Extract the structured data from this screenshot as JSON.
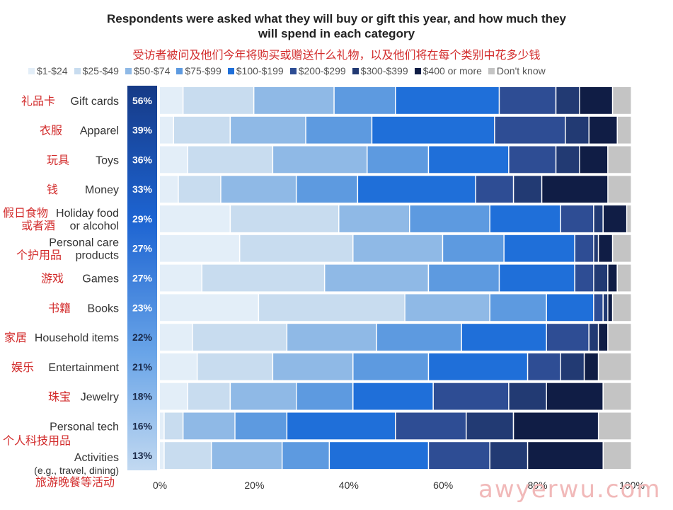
{
  "title": {
    "line1": "Respondents were asked what they will buy or gift this year, and how much they",
    "line2": "will spend in each category"
  },
  "subtitle_cn": "受访者被问及他们今年将购买或赠送什么礼物，以及他们将在每个类别中花多少钱",
  "watermark": "awyerwu.com",
  "chart_data": {
    "type": "bar",
    "orientation": "horizontal",
    "stacked": true,
    "title": "Respondents were asked what they will buy or gift this year, and how much they will spend in each category",
    "xlim": [
      0,
      100
    ],
    "x_ticks": [
      "0%",
      "20%",
      "40%",
      "60%",
      "80%",
      "100%"
    ],
    "legend_position": "top",
    "grid": false,
    "segments": [
      {
        "name": "$1-$24",
        "color": "#e3eef8"
      },
      {
        "name": "$25-$49",
        "color": "#c8dcef"
      },
      {
        "name": "$50-$74",
        "color": "#8fb9e6"
      },
      {
        "name": "$75-$99",
        "color": "#5d9ae0"
      },
      {
        "name": "$100-$199",
        "color": "#1f6fd9"
      },
      {
        "name": "$200-$299",
        "color": "#2e4d94"
      },
      {
        "name": "$300-$399",
        "color": "#223a73"
      },
      {
        "name": "$400 or more",
        "color": "#101d45"
      },
      {
        "name": "Don't know",
        "color": "#c4c4c4"
      }
    ],
    "categories": [
      {
        "label": "Gift cards",
        "label_cn": "礼品卡",
        "pct": "56%",
        "values": [
          5,
          15,
          17,
          13,
          22,
          12,
          5,
          7,
          4
        ]
      },
      {
        "label": "Apparel",
        "label_cn": "衣服",
        "pct": "39%",
        "values": [
          3,
          12,
          16,
          14,
          26,
          15,
          5,
          6,
          3
        ]
      },
      {
        "label": "Toys",
        "label_cn": "玩具",
        "pct": "36%",
        "values": [
          6,
          18,
          20,
          13,
          17,
          10,
          5,
          6,
          5
        ]
      },
      {
        "label": "Money",
        "label_cn": "钱",
        "pct": "33%",
        "values": [
          4,
          9,
          16,
          13,
          25,
          8,
          6,
          14,
          5
        ]
      },
      {
        "label": "Holiday food or alcohol",
        "label_cn": "假日食物或者酒",
        "pct": "29%",
        "values": [
          15,
          23,
          15,
          17,
          15,
          7,
          2,
          5,
          1
        ]
      },
      {
        "label": "Personal care products",
        "label_cn": "个护用品",
        "pct": "27%",
        "values": [
          17,
          24,
          19,
          13,
          15,
          4,
          1,
          3,
          4
        ]
      },
      {
        "label": "Games",
        "label_cn": "游戏",
        "pct": "27%",
        "values": [
          9,
          26,
          22,
          15,
          16,
          4,
          3,
          2,
          3
        ]
      },
      {
        "label": "Books",
        "label_cn": "书籍",
        "pct": "23%",
        "values": [
          21,
          31,
          18,
          12,
          10,
          2,
          1,
          1,
          4
        ]
      },
      {
        "label": "Household items",
        "label_cn": "家居",
        "pct": "22%",
        "values": [
          7,
          20,
          19,
          18,
          18,
          9,
          2,
          2,
          5
        ]
      },
      {
        "label": "Entertainment",
        "label_cn": "娱乐",
        "pct": "21%",
        "values": [
          8,
          16,
          17,
          16,
          21,
          7,
          5,
          3,
          7
        ]
      },
      {
        "label": "Jewelry",
        "label_cn": "珠宝",
        "pct": "18%",
        "values": [
          6,
          9,
          14,
          12,
          17,
          16,
          8,
          12,
          6
        ]
      },
      {
        "label": "Personal tech",
        "label_cn": "个人科技用品",
        "pct": "16%",
        "values": [
          1,
          4,
          11,
          11,
          23,
          15,
          10,
          18,
          7
        ]
      },
      {
        "label": "Activities (e.g., travel, dining)",
        "label_cn": "旅游晚餐等活动",
        "pct": "13%",
        "values": [
          1,
          10,
          15,
          10,
          21,
          13,
          8,
          16,
          6
        ]
      }
    ]
  }
}
